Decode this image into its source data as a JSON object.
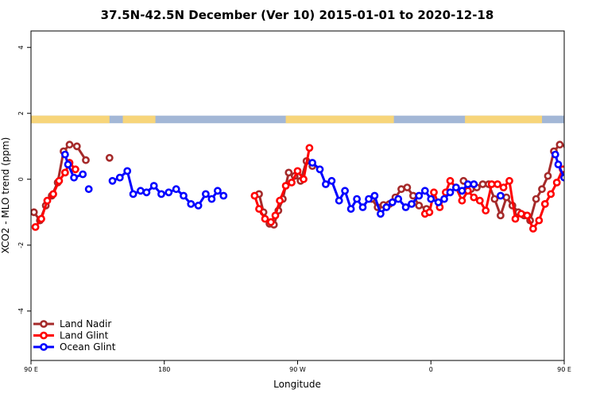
{
  "chart_data": {
    "type": "line",
    "title": "37.5N-42.5N December (Ver 10)   2015-01-01 to 2020-12-18",
    "xlabel": "Longitude",
    "ylabel": "XCO2 - MLO trend (ppm)",
    "xlim": [
      90,
      450
    ],
    "ylim": [
      -5.5,
      4.5
    ],
    "x_ticks": [
      {
        "value": 90,
        "label": "90 E"
      },
      {
        "value": 180,
        "label": "180"
      },
      {
        "value": 270,
        "label": "90 W"
      },
      {
        "value": 360,
        "label": "0"
      },
      {
        "value": 450,
        "label": "90 E"
      }
    ],
    "x_ticks_extra": [
      {
        "value": 540,
        "label": "180"
      }
    ],
    "y_ticks": [
      {
        "value": -4,
        "label": "-4"
      },
      {
        "value": -2,
        "label": "-2"
      },
      {
        "value": 0,
        "label": "0"
      },
      {
        "value": 2,
        "label": "2"
      },
      {
        "value": 4,
        "label": "4"
      }
    ],
    "legend_position": "bottom-left",
    "land_ocean_strip": {
      "y_range": [
        1.7,
        1.93
      ],
      "ocean_color": "#a3b7d6",
      "land_color": "#f7d57a",
      "land_spans": [
        [
          90,
          143
        ],
        [
          152,
          174
        ],
        [
          262,
          335
        ],
        [
          383,
          435
        ],
        [
          450,
          503
        ],
        [
          512,
          534
        ]
      ]
    },
    "series": [
      {
        "name": "Land Nadir",
        "color": "#a52a2a",
        "segments": [
          [
            [
              92,
              -1.0
            ],
            [
              96,
              -1.25
            ],
            [
              100,
              -0.8
            ],
            [
              104,
              -0.5
            ],
            [
              108,
              -0.1
            ],
            [
              112,
              0.85
            ],
            [
              116,
              1.05
            ],
            [
              121,
              1.0
            ],
            [
              127,
              0.58
            ]
          ],
          [
            [
              143,
              0.65
            ]
          ],
          [
            [
              244,
              -0.45
            ],
            [
              247,
              -1.0
            ],
            [
              251,
              -1.35
            ],
            [
              254,
              -1.38
            ],
            [
              257,
              -0.95
            ],
            [
              260,
              -0.6
            ],
            [
              264,
              0.2
            ],
            [
              268,
              0.1
            ],
            [
              272,
              -0.05
            ],
            [
              276,
              0.55
            ],
            [
              280,
              0.4
            ]
          ],
          [
            [
              320,
              -0.6
            ],
            [
              324,
              -0.85
            ],
            [
              328,
              -0.78
            ],
            [
              332,
              -0.75
            ],
            [
              336,
              -0.55
            ],
            [
              340,
              -0.3
            ],
            [
              344,
              -0.25
            ],
            [
              348,
              -0.5
            ],
            [
              352,
              -0.8
            ],
            [
              357,
              -0.9
            ]
          ],
          [
            [
              382,
              -0.05
            ],
            [
              387,
              -0.3
            ],
            [
              391,
              -0.25
            ],
            [
              395,
              -0.15
            ],
            [
              399,
              -0.15
            ],
            [
              403,
              -0.6
            ],
            [
              407,
              -1.1
            ],
            [
              411,
              -0.55
            ],
            [
              415,
              -0.8
            ],
            [
              419,
              -1.0
            ],
            [
              423,
              -1.1
            ],
            [
              427,
              -1.25
            ],
            [
              431,
              -0.6
            ],
            [
              435,
              -0.3
            ],
            [
              439,
              0.1
            ],
            [
              443,
              0.85
            ],
            [
              447,
              1.05
            ],
            [
              452,
              1.0
            ],
            [
              458,
              0.58
            ]
          ],
          [
            [
              474,
              0.65
            ]
          ]
        ]
      },
      {
        "name": "Land Glint",
        "color": "#ff0000",
        "segments": [
          [
            [
              93,
              -1.45
            ],
            [
              97,
              -1.2
            ],
            [
              101,
              -0.65
            ],
            [
              105,
              -0.45
            ],
            [
              109,
              -0.05
            ],
            [
              113,
              0.2
            ],
            [
              116,
              0.5
            ],
            [
              120,
              0.3
            ]
          ],
          [
            [
              241,
              -0.5
            ],
            [
              244,
              -0.9
            ],
            [
              248,
              -1.2
            ],
            [
              252,
              -1.3
            ],
            [
              255,
              -1.1
            ],
            [
              258,
              -0.65
            ],
            [
              262,
              -0.2
            ],
            [
              266,
              -0.1
            ],
            [
              270,
              0.25
            ],
            [
              274,
              0.0
            ],
            [
              278,
              0.95
            ]
          ],
          [
            [
              356,
              -1.05
            ],
            [
              359,
              -1.0
            ],
            [
              362,
              -0.4
            ],
            [
              366,
              -0.85
            ],
            [
              370,
              -0.4
            ],
            [
              373,
              -0.05
            ],
            [
              377,
              -0.25
            ],
            [
              381,
              -0.65
            ],
            [
              385,
              -0.35
            ],
            [
              389,
              -0.55
            ],
            [
              393,
              -0.65
            ],
            [
              397,
              -0.95
            ],
            [
              401,
              -0.15
            ],
            [
              405,
              -0.15
            ],
            [
              409,
              -0.25
            ],
            [
              413,
              -0.05
            ],
            [
              417,
              -1.2
            ],
            [
              421,
              -1.05
            ],
            [
              425,
              -1.1
            ],
            [
              429,
              -1.5
            ],
            [
              433,
              -1.25
            ],
            [
              437,
              -0.75
            ],
            [
              441,
              -0.45
            ],
            [
              445,
              -0.1
            ],
            [
              449,
              0.3
            ],
            [
              453,
              0.3
            ]
          ]
        ]
      },
      {
        "name": "Ocean Glint",
        "color": "#0000ff",
        "segments": [
          [
            [
              113,
              0.75
            ],
            [
              115,
              0.45
            ],
            [
              119,
              0.05
            ],
            [
              125,
              0.15
            ]
          ],
          [
            [
              129,
              -0.3
            ]
          ],
          [
            [
              145,
              -0.05
            ],
            [
              150,
              0.05
            ],
            [
              155,
              0.25
            ],
            [
              159,
              -0.45
            ],
            [
              164,
              -0.35
            ],
            [
              168,
              -0.4
            ],
            [
              173,
              -0.2
            ],
            [
              178,
              -0.45
            ],
            [
              183,
              -0.4
            ],
            [
              188,
              -0.3
            ],
            [
              193,
              -0.5
            ],
            [
              198,
              -0.75
            ],
            [
              203,
              -0.8
            ],
            [
              208,
              -0.45
            ],
            [
              212,
              -0.6
            ],
            [
              216,
              -0.35
            ],
            [
              220,
              -0.5
            ]
          ],
          [
            [
              280,
              0.5
            ],
            [
              285,
              0.3
            ],
            [
              289,
              -0.15
            ],
            [
              293,
              -0.05
            ],
            [
              298,
              -0.65
            ],
            [
              302,
              -0.35
            ],
            [
              306,
              -0.9
            ],
            [
              310,
              -0.6
            ],
            [
              314,
              -0.85
            ],
            [
              318,
              -0.6
            ],
            [
              322,
              -0.5
            ],
            [
              326,
              -1.05
            ],
            [
              330,
              -0.85
            ],
            [
              334,
              -0.7
            ],
            [
              338,
              -0.6
            ],
            [
              343,
              -0.85
            ],
            [
              347,
              -0.75
            ],
            [
              352,
              -0.5
            ],
            [
              356,
              -0.35
            ],
            [
              360,
              -0.6
            ],
            [
              365,
              -0.7
            ],
            [
              369,
              -0.6
            ],
            [
              373,
              -0.4
            ],
            [
              377,
              -0.25
            ],
            [
              381,
              -0.35
            ],
            [
              385,
              -0.15
            ],
            [
              389,
              -0.15
            ]
          ],
          [
            [
              407,
              -0.5
            ]
          ],
          [
            [
              444,
              0.75
            ],
            [
              446,
              0.45
            ],
            [
              450,
              0.05
            ],
            [
              456,
              0.15
            ]
          ],
          [
            [
              460,
              -0.3
            ]
          ],
          [
            [
              476,
              -0.05
            ],
            [
              481,
              0.05
            ],
            [
              486,
              0.25
            ],
            [
              490,
              -0.45
            ]
          ]
        ]
      }
    ]
  }
}
